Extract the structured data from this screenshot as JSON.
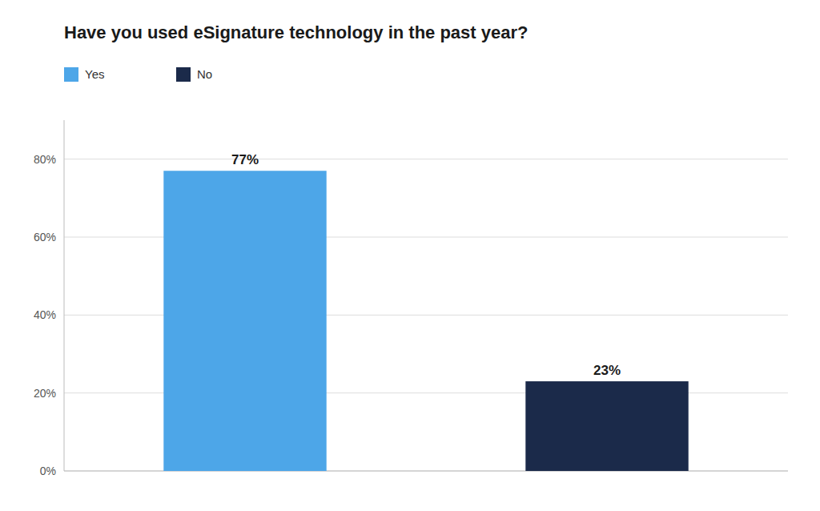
{
  "chart_data": {
    "type": "bar",
    "title": "Have you used eSignature technology in the past year?",
    "categories": [
      "Yes",
      "No"
    ],
    "values": [
      77,
      23
    ],
    "value_labels": [
      "77%",
      "23%"
    ],
    "colors": [
      "#4DA6E8",
      "#1B2A4A"
    ],
    "ylim": [
      0,
      90
    ],
    "yticks": [
      {
        "value": 0,
        "label": "0%"
      },
      {
        "value": 20,
        "label": "20%"
      },
      {
        "value": 40,
        "label": "40%"
      },
      {
        "value": 60,
        "label": "60%"
      },
      {
        "value": 80,
        "label": "80%"
      }
    ],
    "grid": true,
    "legend": "top",
    "data_labels": true,
    "tick_labels": "y"
  }
}
